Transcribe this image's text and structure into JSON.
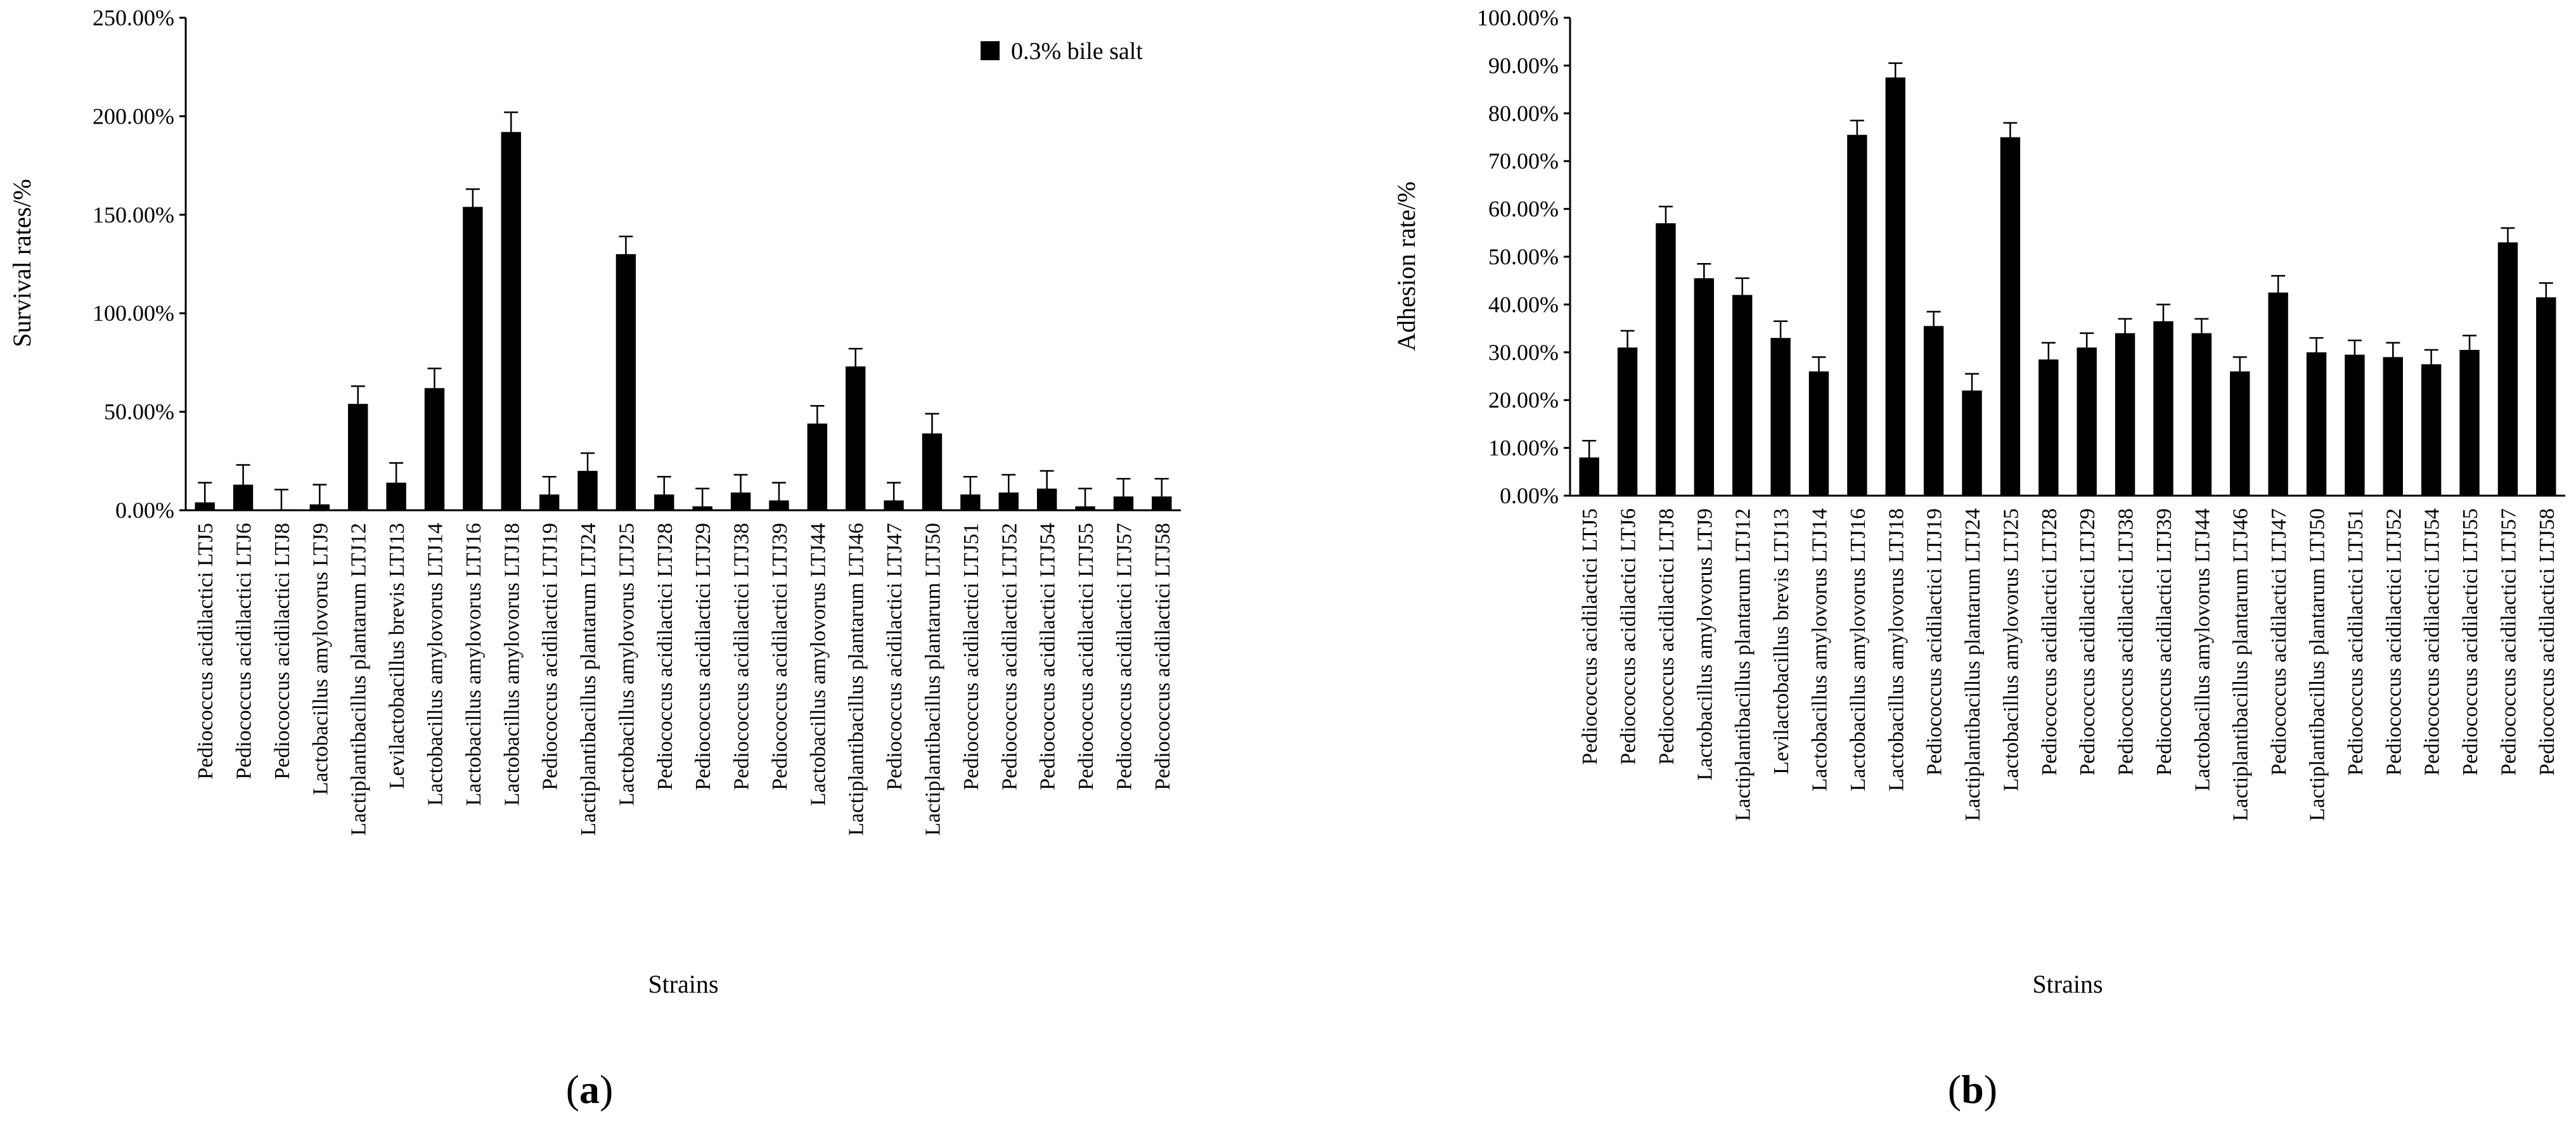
{
  "chart_data": [
    {
      "type": "bar",
      "panel": "(a)",
      "panel_letter": "a",
      "title": "",
      "xlabel": "Strains",
      "ylabel": "Survival rates/%",
      "ylim": [
        0,
        250
      ],
      "yticks": [
        "0.00%",
        "50.00%",
        "100.00%",
        "150.00%",
        "200.00%",
        "250.00%"
      ],
      "legend": {
        "label": "0.3% bile salt",
        "placement": "top-right"
      },
      "series": [
        {
          "name": "0.3% bile salt",
          "color": "#000000"
        }
      ],
      "categories": [
        "Pediococcus acidilactici LTJ5",
        "Pediococcus acidilactici LTJ6",
        "Pediococcus acidilactici LTJ8",
        "Lactobacillus amylovorus LTJ9",
        "Lactiplantibacillus plantarum LTJ12",
        "Levilactobacillus brevis LTJ13",
        "Lactobacillus amylovorus LTJ14",
        "Lactobacillus amylovorus LTJ16",
        "Lactobacillus amylovorus LTJ18",
        "Pediococcus acidilactici LTJ19",
        "Lactiplantibacillus plantarum LTJ24",
        "Lactobacillus amylovorus LTJ25",
        "Pediococcus acidilactici LTJ28",
        "Pediococcus acidilactici LTJ29",
        "Pediococcus acidilactici LTJ38",
        "Pediococcus acidilactici LTJ39",
        "Lactobacillus amylovorus LTJ44",
        "Lactiplantibacillus plantarum LTJ46",
        "Pediococcus acidilactici LTJ47",
        "Lactiplantibacillus plantarum LTJ50",
        "Pediococcus acidilactici LTJ51",
        "Pediococcus acidilactici LTJ52",
        "Pediococcus acidilactici LTJ54",
        "Pediococcus acidilactici LTJ55",
        "Pediococcus acidilactici LTJ57",
        "Pediococcus acidilactici LTJ58"
      ],
      "values": [
        4,
        13,
        0.5,
        3,
        54,
        14,
        62,
        154,
        192,
        8,
        20,
        130,
        8,
        2,
        9,
        5,
        44,
        73,
        5,
        39,
        8,
        9,
        11,
        2,
        7,
        7
      ],
      "errors": [
        10,
        10,
        10,
        10,
        9,
        10,
        10,
        9,
        10,
        9,
        9,
        9,
        9,
        9,
        9,
        9,
        9,
        9,
        9,
        10,
        9,
        9,
        9,
        9,
        9,
        9
      ]
    },
    {
      "type": "bar",
      "panel": "(b)",
      "panel_letter": "b",
      "title": "",
      "xlabel": "Strains",
      "ylabel": "Adhesion rate/%",
      "ylim": [
        0,
        100
      ],
      "yticks": [
        "0.00%",
        "10.00%",
        "20.00%",
        "30.00%",
        "40.00%",
        "50.00%",
        "60.00%",
        "70.00%",
        "80.00%",
        "90.00%",
        "100.00%"
      ],
      "series": [
        {
          "name": "Adhesion rate",
          "color": "#000000"
        }
      ],
      "categories": [
        "Pediococcus acidilactici LTJ5",
        "Pediococcus acidilactici LTJ6",
        "Pediococcus acidilactici LTJ8",
        "Lactobacillus amylovorus LTJ9",
        "Lactiplantibacillus plantarum LTJ12",
        "Levilactobacillus brevis LTJ13",
        "Lactobacillus amylovorus LTJ14",
        "Lactobacillus amylovorus LTJ16",
        "Lactobacillus amylovorus LTJ18",
        "Pediococcus acidilactici LTJ19",
        "Lactiplantibacillus plantarum LTJ24",
        "Lactobacillus amylovorus LTJ25",
        "Pediococcus acidilactici LTJ28",
        "Pediococcus acidilactici LTJ29",
        "Pediococcus acidilactici LTJ38",
        "Pediococcus acidilactici LTJ39",
        "Lactobacillus amylovorus LTJ44",
        "Lactiplantibacillus plantarum LTJ46",
        "Pediococcus acidilactici LTJ47",
        "Lactiplantibacillus plantarum LTJ50",
        "Pediococcus acidilactici LTJ51",
        "Pediococcus acidilactici LTJ52",
        "Pediococcus acidilactici LTJ54",
        "Pediococcus acidilactici LTJ55",
        "Pediococcus acidilactici LTJ57",
        "Pediococcus acidilactici LTJ58"
      ],
      "values": [
        8,
        31,
        57,
        45.5,
        42,
        33,
        26,
        75.5,
        87.5,
        35.5,
        22,
        75,
        28.5,
        31,
        34,
        36.5,
        34,
        26,
        42.5,
        30,
        29.5,
        29,
        27.5,
        30.5,
        53,
        41.5
      ],
      "errors": [
        3.5,
        3.5,
        3.5,
        3,
        3.5,
        3.5,
        3,
        3,
        3,
        3,
        3.5,
        3,
        3.5,
        3,
        3,
        3.5,
        3,
        3,
        3.5,
        3,
        3,
        3,
        3,
        3,
        3,
        3
      ]
    }
  ]
}
